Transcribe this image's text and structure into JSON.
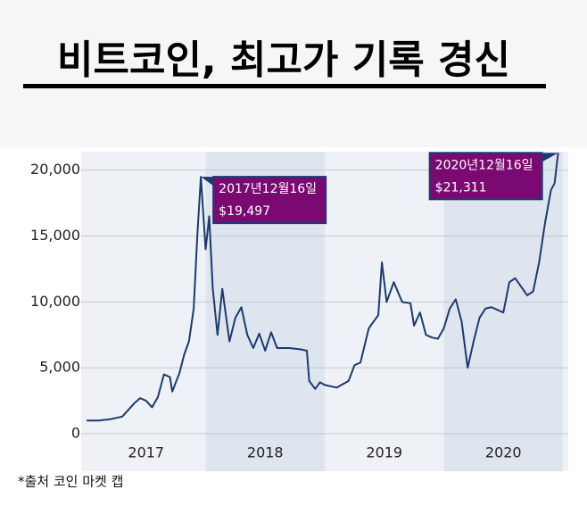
{
  "chart_data": {
    "type": "line",
    "title": "비트코인, 최고가 기록 경신",
    "source": "*출처 코인 마켓 캡",
    "color": "#1c3a70",
    "x": [
      2017.0,
      2017.1,
      2017.2,
      2017.3,
      2017.4,
      2017.45,
      2017.5,
      2017.55,
      2017.6,
      2017.65,
      2017.7,
      2017.72,
      2017.78,
      2017.82,
      2017.86,
      2017.9,
      2017.93,
      2017.96,
      2018.0,
      2018.03,
      2018.06,
      2018.1,
      2018.14,
      2018.2,
      2018.25,
      2018.3,
      2018.35,
      2018.4,
      2018.45,
      2018.5,
      2018.55,
      2018.6,
      2018.7,
      2018.8,
      2018.85,
      2018.87,
      2018.92,
      2018.96,
      2019.0,
      2019.1,
      2019.2,
      2019.25,
      2019.3,
      2019.37,
      2019.45,
      2019.48,
      2019.52,
      2019.58,
      2019.65,
      2019.72,
      2019.75,
      2019.8,
      2019.85,
      2019.9,
      2019.95,
      2020.0,
      2020.05,
      2020.1,
      2020.15,
      2020.2,
      2020.25,
      2020.3,
      2020.35,
      2020.4,
      2020.5,
      2020.55,
      2020.6,
      2020.7,
      2020.75,
      2020.8,
      2020.85,
      2020.9,
      2020.93,
      2020.96
    ],
    "values": [
      1000,
      1000,
      1100,
      1300,
      2300,
      2700,
      2500,
      2000,
      2800,
      4500,
      4300,
      3200,
      4600,
      6000,
      7000,
      9500,
      15000,
      19497,
      14000,
      16500,
      11000,
      7500,
      11000,
      7000,
      8800,
      9600,
      7500,
      6500,
      7600,
      6300,
      7700,
      6500,
      6500,
      6400,
      6300,
      4000,
      3400,
      3900,
      3700,
      3500,
      4000,
      5200,
      5400,
      8000,
      9000,
      13000,
      10000,
      11500,
      10000,
      9900,
      8200,
      9200,
      7500,
      7300,
      7200,
      8000,
      9500,
      10200,
      8500,
      5000,
      7000,
      8800,
      9500,
      9600,
      9200,
      11500,
      11800,
      10500,
      10800,
      13000,
      16000,
      18500,
      19000,
      21311
    ],
    "xlim": [
      2017,
      2021
    ],
    "xticks": [
      {
        "value": 2017.5,
        "label": "2017"
      },
      {
        "value": 2018.5,
        "label": "2018"
      },
      {
        "value": 2019.5,
        "label": "2019"
      },
      {
        "value": 2020.5,
        "label": "2020"
      }
    ],
    "ylim": [
      0,
      21400
    ],
    "yticks": [
      0,
      {
        "value": 5000,
        "label": "5,000"
      },
      {
        "value": 10000,
        "label": "10,000"
      },
      {
        "value": 15000,
        "label": "15,000"
      },
      {
        "value": 20000,
        "label": "20,000"
      }
    ],
    "grid": true,
    "annotations": [
      {
        "date": "2017년12월16일",
        "label": "$19,497",
        "x": 2017.96,
        "y": 19497
      },
      {
        "date": "2020년12월16일",
        "label": "$21,311",
        "x": 2020.96,
        "y": 21311
      }
    ]
  }
}
